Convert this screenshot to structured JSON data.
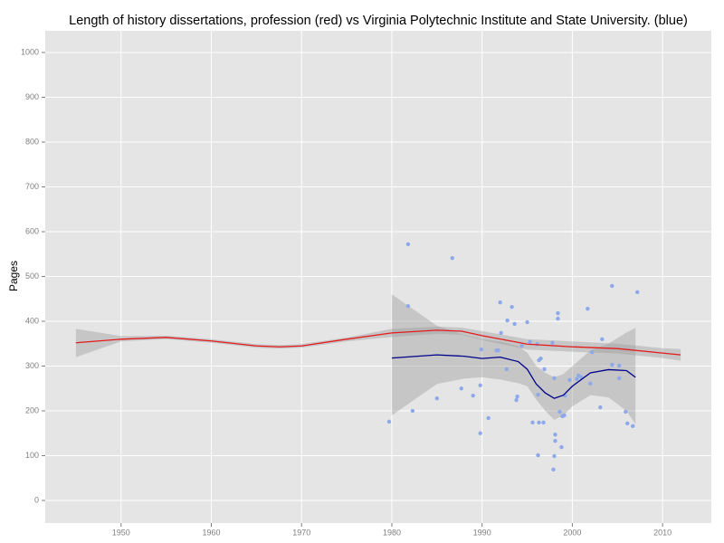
{
  "chart_data": {
    "type": "scatter",
    "title": "Length of history dissertations, profession (red) vs Virginia Polytechnic Institute and State University. (blue)",
    "y_label": "Pages",
    "xlim": [
      1941.6,
      2015.4
    ],
    "ylim": [
      -50.5,
      1048.5
    ],
    "xticks": [
      1950,
      1960,
      1970,
      1980,
      1990,
      2000,
      2010
    ],
    "yticks": [
      0,
      100,
      200,
      300,
      400,
      500,
      600,
      700,
      800,
      900,
      1000
    ],
    "grid": true,
    "points": {
      "color": "#8ea9ea",
      "x": [
        1979.7,
        1981.8,
        1981.8,
        1982.3,
        1985,
        1986.7,
        1987.7,
        1989,
        1989.8,
        1989.8,
        1989.9,
        1990.7,
        1991.6,
        1991.8,
        1992,
        1992.1,
        1992.7,
        1992.8,
        1993.3,
        1993.6,
        1993.8,
        1993.9,
        1994.4,
        1995,
        1995.3,
        1995.6,
        1996.1,
        1996.2,
        1996.2,
        1996.3,
        1996.3,
        1996.5,
        1996.8,
        1996.9,
        1997.8,
        1997.9,
        1998,
        1998.1,
        1998.1,
        1998,
        1998.4,
        1998.4,
        1998.6,
        1998.8,
        1998.9,
        1999.1,
        1999.2,
        1999.7,
        2000.5,
        2000.7,
        2001,
        2001.7,
        2002,
        2002.2,
        2003.1,
        2003.3,
        2004.4,
        2004.4,
        2005.2,
        2005.2,
        2005.9,
        2006.1,
        2006.7,
        2007.2
      ],
      "y": [
        176,
        434,
        572,
        200,
        228,
        541,
        250,
        234,
        150,
        257,
        337,
        184,
        335,
        335,
        442,
        374,
        293,
        402,
        432,
        394,
        224,
        232,
        345,
        398,
        354,
        174,
        349,
        101,
        236,
        174,
        313,
        317,
        174,
        293,
        352,
        69,
        99,
        133,
        147,
        273,
        418,
        406,
        198,
        119,
        188,
        190,
        234,
        269,
        271,
        279,
        275,
        428,
        261,
        331,
        208,
        360,
        479,
        303,
        273,
        301,
        198,
        172,
        166,
        465
      ]
    },
    "smooths": [
      {
        "color": "#e41a1c",
        "x": [
          1945,
          1950,
          1955,
          1960,
          1965,
          1967.6,
          1970,
          1975,
          1980,
          1985,
          1987.7,
          1990,
          1995,
          2000,
          2005,
          2010,
          2012
        ],
        "values": [
          352,
          360,
          364,
          356,
          345,
          343,
          345,
          360,
          374,
          380,
          378,
          368,
          349,
          343,
          339,
          329,
          325
        ],
        "lower": [
          320,
          355,
          360,
          352,
          341,
          339,
          341,
          355,
          365,
          372,
          370,
          358,
          337,
          332,
          328,
          318,
          312
        ],
        "upper": [
          383,
          367,
          368,
          360,
          349,
          347,
          349,
          364,
          383,
          388,
          386,
          378,
          360,
          355,
          350,
          340,
          338
        ]
      },
      {
        "color": "#00008b",
        "x": [
          1980,
          1985,
          1988,
          1990,
          1992,
          1994,
          1995,
          1996,
          1997,
          1998,
          1999,
          2000,
          2002,
          2004,
          2006,
          2007
        ],
        "values": [
          318,
          325,
          322,
          317,
          320,
          310,
          293,
          260,
          240,
          228,
          235,
          255,
          285,
          292,
          290,
          275
        ],
        "lower": [
          190,
          260,
          272,
          275,
          270,
          262,
          255,
          225,
          200,
          180,
          190,
          210,
          235,
          230,
          200,
          170
        ],
        "upper": [
          460,
          390,
          370,
          360,
          355,
          345,
          330,
          300,
          285,
          275,
          282,
          300,
          335,
          350,
          375,
          385
        ]
      }
    ]
  }
}
